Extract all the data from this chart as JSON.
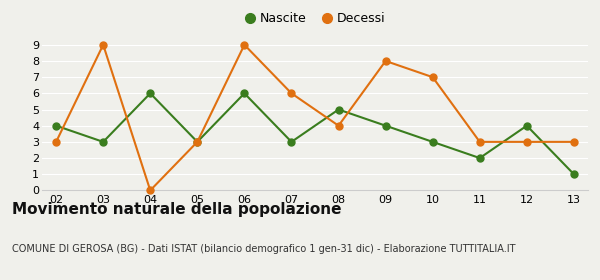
{
  "years": [
    "02",
    "03",
    "04",
    "05",
    "06",
    "07",
    "08",
    "09",
    "10",
    "11",
    "12",
    "13"
  ],
  "nascite": [
    4,
    3,
    6,
    3,
    6,
    3,
    5,
    4,
    3,
    2,
    4,
    1
  ],
  "decessi": [
    3,
    9,
    0,
    3,
    9,
    6,
    4,
    8,
    7,
    3,
    3,
    3
  ],
  "nascite_color": "#3a7d1e",
  "decessi_color": "#e07010",
  "background_color": "#f0f0eb",
  "title": "Movimento naturale della popolazione",
  "subtitle": "COMUNE DI GEROSA (BG) - Dati ISTAT (bilancio demografico 1 gen-31 dic) - Elaborazione TUTTITALIA.IT",
  "legend_nascite": "Nascite",
  "legend_decessi": "Decessi",
  "ylim": [
    0,
    9
  ],
  "yticks": [
    0,
    1,
    2,
    3,
    4,
    5,
    6,
    7,
    8,
    9
  ],
  "tick_fontsize": 8,
  "title_fontsize": 11,
  "subtitle_fontsize": 7,
  "marker_size": 5,
  "line_width": 1.5,
  "legend_fontsize": 9,
  "grid_color": "#ffffff",
  "spine_color": "#cccccc"
}
